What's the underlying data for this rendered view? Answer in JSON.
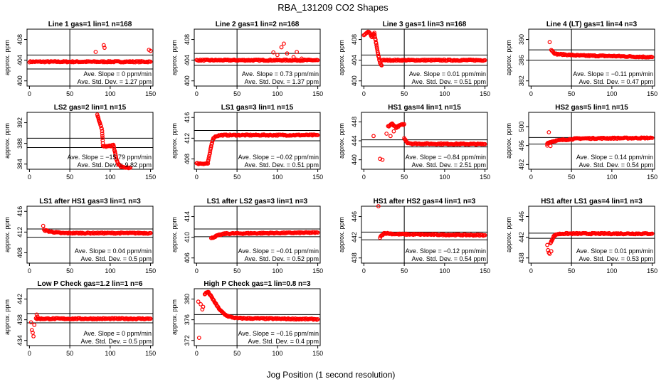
{
  "title": "RBA_131209  CO2 Shapes",
  "xlabel": "Jog Position (1 second resolution)",
  "ylabel": "approx. ppm",
  "colors": {
    "points": "#ff0000",
    "axes": "#000000"
  },
  "chart_data": [
    {
      "type": "scatter",
      "title": "Line 1 gas=1 lin=1 n=168",
      "xticks": [
        0,
        50,
        100,
        150
      ],
      "yticks": [
        "400",
        "404",
        "408"
      ],
      "ylim": [
        399,
        410
      ],
      "ref_lines": [
        402.3,
        405.0
      ],
      "vline": 50,
      "annotation": [
        "Ave. Slope = 0  ppm/min",
        "Ave. Std. Dev. = 1.27  ppm"
      ],
      "segments": [
        {
          "x": [
            0,
            150
          ],
          "y": [
            403.7,
            403.7
          ]
        }
      ],
      "points": [
        [
          82,
          405.6
        ],
        [
          92,
          406.9
        ],
        [
          93,
          406.4
        ],
        [
          100,
          403.8
        ],
        [
          148,
          406.0
        ],
        [
          150,
          405.8
        ]
      ]
    },
    {
      "type": "scatter",
      "title": "Line 2 gas=1 lin=2 n=168",
      "xticks": [
        0,
        50,
        100,
        150
      ],
      "yticks": [
        "400",
        "404",
        "408"
      ],
      "ylim": [
        399,
        410
      ],
      "ref_lines": [
        403.0,
        405.3
      ],
      "vline": 50,
      "annotation": [
        "Ave. Slope = 0.73  ppm/min",
        "Ave. Std. Dev. = 1.37  ppm"
      ],
      "segments": [
        {
          "x": [
            0,
            150
          ],
          "y": [
            404.0,
            404.0
          ]
        }
      ],
      "points": [
        [
          95,
          405.5
        ],
        [
          100,
          405.0
        ],
        [
          105,
          406.5
        ],
        [
          108,
          407.2
        ],
        [
          112,
          405.3
        ],
        [
          120,
          404.6
        ],
        [
          124,
          405.6
        ],
        [
          130,
          404.3
        ]
      ]
    },
    {
      "type": "scatter",
      "title": "Line 3 gas=1 lin=3 n=168",
      "xticks": [
        0,
        50,
        100,
        150
      ],
      "yticks": [
        "400",
        "404",
        "408"
      ],
      "ylim": [
        399,
        410
      ],
      "ref_lines": [
        403.0,
        405.0
      ],
      "vline": 50,
      "annotation": [
        "Ave. Slope = 0.01  ppm/min",
        "Ave. Std. Dev. = 0.51  ppm"
      ],
      "segments": [
        {
          "x": [
            0,
            6,
            10,
            13,
            16,
            18,
            20,
            22
          ],
          "y": [
            408.8,
            409.5,
            408.5,
            409.2,
            406.5,
            404.8,
            403.5,
            403.0
          ]
        },
        {
          "x": [
            22,
            150
          ],
          "y": [
            404.0,
            404.0
          ]
        }
      ],
      "points": []
    },
    {
      "type": "scatter",
      "title": "Line 4 (LT) gas=1 lin=4 n=3",
      "xticks": [
        0,
        50,
        100,
        150
      ],
      "yticks": [
        "382",
        "386",
        "390"
      ],
      "ylim": [
        381,
        392
      ],
      "ref_lines": [
        386.0,
        388.0
      ],
      "vline": 50,
      "annotation": [
        "Ave. Slope = −0.11  ppm/min",
        "Ave. Std. Dev. = 0.47  ppm"
      ],
      "segments": [
        {
          "x": [
            25,
            30,
            40,
            60,
            100,
            150
          ],
          "y": [
            388.0,
            387.2,
            387.1,
            386.9,
            386.8,
            386.6
          ]
        }
      ],
      "points": [
        [
          23,
          389.5
        ]
      ]
    },
    {
      "type": "scatter",
      "title": "LS2 gas=2 lin=1 n=15",
      "xticks": [
        0,
        50,
        100,
        150
      ],
      "yticks": [
        "384",
        "388",
        "392"
      ],
      "ylim": [
        383,
        394
      ],
      "ref_lines": [
        387.2,
        389.0
      ],
      "vline": 50,
      "annotation": [
        "Ave. Slope = −15.79  ppm/min",
        "Ave. Std. Dev. = 9.82  ppm"
      ],
      "segments": [
        {
          "x": [
            84,
            86,
            88,
            90,
            91,
            95,
            100,
            104,
            106,
            108,
            110,
            114,
            125
          ],
          "y": [
            393.5,
            392.5,
            391.5,
            390.5,
            387.5,
            387.4,
            387.5,
            387.7,
            386.2,
            384.8,
            384.0,
            383.4,
            383.3
          ]
        }
      ],
      "points": []
    },
    {
      "type": "scatter",
      "title": "LS1 gas=3 lin=1 n=15",
      "xticks": [
        0,
        50,
        100,
        150
      ],
      "yticks": [
        "408",
        "412",
        "416"
      ],
      "ylim": [
        406,
        417
      ],
      "ref_lines": [
        411.5,
        413.5
      ],
      "vline": 50,
      "annotation": [
        "Ave. Slope = −0.02  ppm/min",
        "Ave. Std. Dev. = 0.51  ppm"
      ],
      "segments": [
        {
          "x": [
            0,
            14
          ],
          "y": [
            407.1,
            407.1
          ]
        },
        {
          "x": [
            14,
            16,
            18,
            20,
            22,
            24,
            30,
            150
          ],
          "y": [
            407.5,
            408.8,
            410.5,
            411.8,
            412.2,
            412.4,
            412.6,
            412.6
          ]
        }
      ],
      "points": []
    },
    {
      "type": "scatter",
      "title": "HS1 gas=4 lin=1 n=15",
      "xticks": [
        0,
        50,
        100,
        150
      ],
      "yticks": [
        "440",
        "444",
        "448"
      ],
      "ylim": [
        438,
        450
      ],
      "ref_lines": [
        442.7,
        444.2
      ],
      "vline": 50,
      "annotation": [
        "Ave. Slope = −0.84  ppm/min",
        "Ave. Std. Dev. = 2.51  ppm"
      ],
      "segments": [
        {
          "x": [
            30,
            35,
            40,
            45,
            50
          ],
          "y": [
            447.0,
            447.6,
            446.8,
            447.3,
            447.5
          ]
        },
        {
          "x": [
            50,
            54,
            60,
            150
          ],
          "y": [
            444.5,
            443.6,
            443.4,
            443.3
          ]
        }
      ],
      "points": [
        [
          12,
          445.0
        ],
        [
          20,
          440.2
        ],
        [
          23,
          440.0
        ],
        [
          28,
          445.5
        ],
        [
          33,
          445.0
        ],
        [
          37,
          446.0
        ]
      ]
    },
    {
      "type": "scatter",
      "title": "HS2 gas=5 lin=1 n=15",
      "xticks": [
        0,
        50,
        100,
        150
      ],
      "yticks": [
        "492",
        "496",
        "500"
      ],
      "ylim": [
        491,
        503
      ],
      "ref_lines": [
        496.3,
        497.7
      ],
      "vline": 50,
      "annotation": [
        "Ave. Slope = 0.14  ppm/min",
        "Ave. Std. Dev. = 0.54  ppm"
      ],
      "segments": [
        {
          "x": [
            20,
            25,
            30,
            40,
            60,
            150
          ],
          "y": [
            496.5,
            496.8,
            497.0,
            497.2,
            497.5,
            497.6
          ]
        }
      ],
      "points": [
        [
          22,
          498.8
        ],
        [
          20,
          496.0
        ],
        [
          24,
          495.9
        ]
      ]
    },
    {
      "type": "scatter",
      "title": "LS1 after HS1 gas=3 lin=1 n=3",
      "xticks": [
        0,
        50,
        100,
        150
      ],
      "yticks": [
        "408",
        "412",
        "416"
      ],
      "ylim": [
        406,
        417
      ],
      "ref_lines": [
        411.0,
        412.6
      ],
      "vline": 50,
      "annotation": [
        "Ave. Slope = 0.04  ppm/min",
        "Ave. Std. Dev. = 0.5  ppm"
      ],
      "segments": [
        {
          "x": [
            18,
            25,
            40,
            150
          ],
          "y": [
            412.4,
            412.1,
            411.8,
            411.8
          ]
        }
      ],
      "points": [
        [
          17,
          413.2
        ]
      ]
    },
    {
      "type": "scatter",
      "title": "LS1 after LS2 gas=3 lin=1 n=3",
      "xticks": [
        0,
        50,
        100,
        150
      ],
      "yticks": [
        "406",
        "410",
        "414"
      ],
      "ylim": [
        405,
        416
      ],
      "ref_lines": [
        410.1,
        411.6
      ],
      "vline": 50,
      "annotation": [
        "Ave. Slope = −0.01  ppm/min",
        "Ave. Std. Dev. = 0.52  ppm"
      ],
      "segments": [
        {
          "x": [
            18,
            25,
            35,
            150
          ],
          "y": [
            409.8,
            410.3,
            410.7,
            410.9
          ]
        }
      ],
      "points": []
    },
    {
      "type": "scatter",
      "title": "HS1 after HS2 gas=4 lin=1 n=3",
      "xticks": [
        0,
        50,
        100,
        150
      ],
      "yticks": [
        "438",
        "442",
        "446"
      ],
      "ylim": [
        437,
        448
      ],
      "ref_lines": [
        441.5,
        443.0
      ],
      "vline": 50,
      "annotation": [
        "Ave. Slope = −0.12  ppm/min",
        "Ave. Std. Dev. = 0.54  ppm"
      ],
      "segments": [
        {
          "x": [
            20,
            25,
            40,
            150
          ],
          "y": [
            442.0,
            442.8,
            442.6,
            442.4
          ]
        }
      ],
      "points": [
        [
          18,
          448.0
        ]
      ]
    },
    {
      "type": "scatter",
      "title": "HS1 after LS1 gas=4 lin=1 n=3",
      "xticks": [
        0,
        50,
        100,
        150
      ],
      "yticks": [
        "438",
        "442",
        "446"
      ],
      "ylim": [
        437,
        448
      ],
      "ref_lines": [
        441.8,
        442.8
      ],
      "vline": 50,
      "annotation": [
        "Ave. Slope = 0.01  ppm/min",
        "Ave. Std. Dev. = 0.53  ppm"
      ],
      "segments": [
        {
          "x": [
            24,
            28,
            32,
            40,
            150
          ],
          "y": [
            440.8,
            442.2,
            442.6,
            442.7,
            442.7
          ]
        }
      ],
      "points": [
        [
          20,
          440.5
        ],
        [
          21,
          439.5
        ],
        [
          22,
          439.0
        ],
        [
          23,
          438.8
        ],
        [
          25,
          439.3
        ]
      ]
    },
    {
      "type": "scatter",
      "title": "Low P Check gas=1.2 lin=1 n=6",
      "xticks": [
        0,
        50,
        100,
        150
      ],
      "yticks": [
        "434",
        "438",
        "442"
      ],
      "ylim": [
        433,
        444
      ],
      "ref_lines": [
        437.4,
        439.2
      ],
      "vline": 50,
      "annotation": [
        "Ave. Slope = 0  ppm/min",
        "Ave. Std. Dev. = 0.5  ppm"
      ],
      "segments": [
        {
          "x": [
            8,
            150
          ],
          "y": [
            438.2,
            438.2
          ]
        }
      ],
      "points": [
        [
          2,
          437.5
        ],
        [
          3,
          436.0
        ],
        [
          4,
          435.5
        ],
        [
          5,
          434.8
        ],
        [
          6,
          437.0
        ],
        [
          9,
          439.0
        ],
        [
          10,
          438.6
        ]
      ]
    },
    {
      "type": "scatter",
      "title": "High P Check gas=1 lin=0.8 n=3",
      "xticks": [
        0,
        50,
        100,
        150
      ],
      "yticks": [
        "372",
        "376",
        "380"
      ],
      "ylim": [
        371,
        382
      ],
      "ref_lines": [
        375.2,
        377.0
      ],
      "vline": 50,
      "annotation": [
        "Ave. Slope = −0.16  ppm/min",
        "Ave. Std. Dev. = 0.4  ppm"
      ],
      "segments": [
        {
          "x": [
            10,
            14,
            18,
            22,
            26,
            30,
            35,
            40,
            50,
            150
          ],
          "y": [
            381.0,
            381.4,
            380.5,
            379.5,
            378.5,
            377.7,
            377.0,
            376.6,
            376.3,
            376.1
          ]
        }
      ],
      "points": [
        [
          2,
          379.5
        ],
        [
          3,
          372.5
        ],
        [
          5,
          379.0
        ],
        [
          7,
          378.0
        ],
        [
          8,
          378.5
        ]
      ]
    }
  ]
}
